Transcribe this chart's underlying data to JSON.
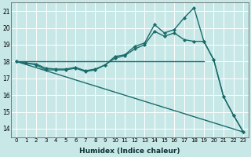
{
  "xlabel": "Humidex (Indice chaleur)",
  "bg_color": "#c8e8e8",
  "grid_color": "#ffffff",
  "line_color": "#1a6b6b",
  "xlim": [
    -0.5,
    23.5
  ],
  "ylim": [
    13.5,
    21.5
  ],
  "xticks": [
    0,
    1,
    2,
    3,
    4,
    5,
    6,
    7,
    8,
    9,
    10,
    11,
    12,
    13,
    14,
    15,
    16,
    17,
    18,
    19,
    20,
    21,
    22,
    23
  ],
  "yticks": [
    14,
    15,
    16,
    17,
    18,
    19,
    20,
    21
  ],
  "series": [
    {
      "x": [
        0,
        1,
        2,
        3,
        4,
        5,
        6,
        7,
        8,
        9,
        10,
        11,
        12,
        13,
        14,
        15,
        16,
        17,
        18,
        19,
        20,
        21,
        22,
        23
      ],
      "y": [
        18.0,
        17.9,
        17.8,
        17.5,
        17.5,
        17.5,
        17.6,
        17.4,
        17.5,
        17.8,
        18.3,
        18.4,
        18.9,
        19.1,
        20.2,
        19.7,
        19.9,
        20.6,
        21.2,
        19.2,
        18.1,
        15.9,
        14.8,
        13.8
      ],
      "marker": "D",
      "markersize": 2.0,
      "linewidth": 1.0
    },
    {
      "x": [
        0,
        1,
        2,
        3,
        4,
        5,
        6,
        7,
        8,
        9,
        10,
        11,
        12,
        13,
        14,
        15,
        16,
        17,
        18,
        19,
        20,
        21,
        22,
        23
      ],
      "y": [
        18.0,
        17.9,
        17.85,
        17.6,
        17.55,
        17.55,
        17.65,
        17.45,
        17.55,
        17.8,
        18.2,
        18.35,
        18.75,
        19.0,
        19.8,
        19.5,
        19.7,
        19.3,
        19.2,
        19.2,
        18.1,
        15.9,
        14.8,
        13.8
      ],
      "marker": "D",
      "markersize": 2.0,
      "linewidth": 1.0
    },
    {
      "x": [
        0,
        23
      ],
      "y": [
        18.0,
        13.8
      ],
      "marker": null,
      "markersize": 0,
      "linewidth": 1.0
    },
    {
      "x": [
        0,
        19
      ],
      "y": [
        18.0,
        18.0
      ],
      "marker": null,
      "markersize": 0,
      "linewidth": 1.0
    }
  ]
}
